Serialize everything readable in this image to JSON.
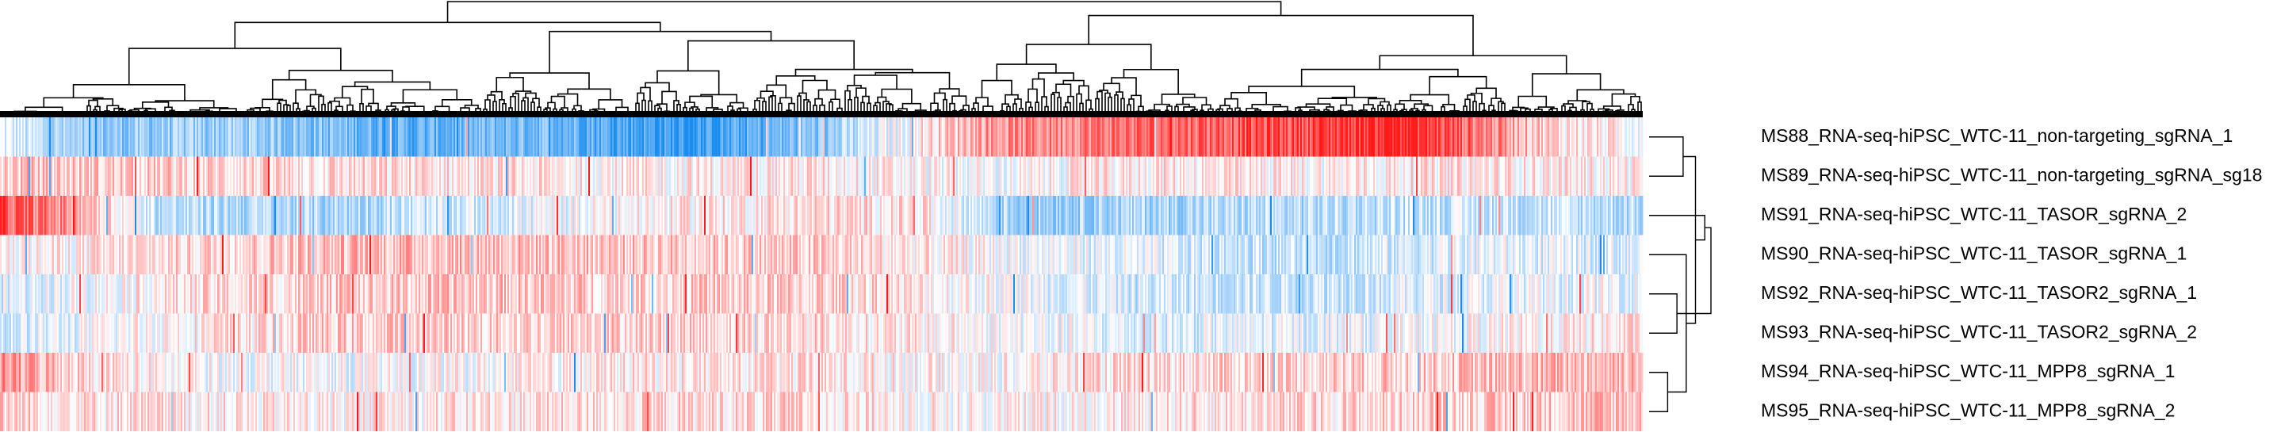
{
  "chart_data": {
    "type": "heatmap",
    "title": "",
    "xlabel": "",
    "ylabel": "",
    "row_dendrogram": "right",
    "column_dendrogram": "top",
    "legend": "none",
    "colors": {
      "low": "#1a8cf0",
      "mid": "#ffffff",
      "high": "#ff1a1a",
      "branch": "#000000"
    },
    "value_range": [
      -1,
      1
    ],
    "rows": [
      "MS88_RNA-seq-hiPSC_WTC-11_non-targeting_sgRNA_1",
      "MS89_RNA-seq-hiPSC_WTC-11_non-targeting_sgRNA_sg18",
      "MS91_RNA-seq-hiPSC_WTC-11_TASOR_sgRNA_2",
      "MS90_RNA-seq-hiPSC_WTC-11_TASOR_sgRNA_1",
      "MS92_RNA-seq-hiPSC_WTC-11_TASOR2_sgRNA_1",
      "MS93_RNA-seq-hiPSC_WTC-11_TASOR2_sgRNA_2",
      "MS94_RNA-seq-hiPSC_WTC-11_MPP8_sgRNA_1",
      "MS95_RNA-seq-hiPSC_WTC-11_MPP8_sgRNA_2"
    ],
    "row_profiles": [
      [
        [
          0,
          -0.1
        ],
        [
          0.05,
          -0.5
        ],
        [
          0.15,
          -0.4
        ],
        [
          0.25,
          -0.7
        ],
        [
          0.33,
          -0.55
        ],
        [
          0.42,
          -0.9
        ],
        [
          0.5,
          -0.5
        ],
        [
          0.56,
          0.1
        ],
        [
          0.6,
          0.45
        ],
        [
          0.7,
          0.65
        ],
        [
          0.8,
          0.8
        ],
        [
          0.85,
          1.0
        ],
        [
          0.9,
          0.6
        ],
        [
          0.95,
          0.15
        ],
        [
          1.0,
          0.0
        ]
      ],
      [
        [
          0,
          0.25
        ],
        [
          0.1,
          0.2
        ],
        [
          0.2,
          0.15
        ],
        [
          0.3,
          0.1
        ],
        [
          0.4,
          0.05
        ],
        [
          0.5,
          0.1
        ],
        [
          0.6,
          -0.05
        ],
        [
          0.7,
          0.1
        ],
        [
          0.8,
          0.05
        ],
        [
          0.9,
          0.1
        ],
        [
          1.0,
          0.05
        ]
      ],
      [
        [
          0,
          0.75
        ],
        [
          0.05,
          0.4
        ],
        [
          0.1,
          -0.3
        ],
        [
          0.2,
          -0.35
        ],
        [
          0.3,
          -0.15
        ],
        [
          0.4,
          0.05
        ],
        [
          0.5,
          0.15
        ],
        [
          0.56,
          0.1
        ],
        [
          0.62,
          -0.4
        ],
        [
          0.7,
          -0.35
        ],
        [
          0.8,
          -0.3
        ],
        [
          0.9,
          -0.2
        ],
        [
          1.0,
          -0.3
        ]
      ],
      [
        [
          0,
          0.0
        ],
        [
          0.1,
          0.15
        ],
        [
          0.2,
          0.3
        ],
        [
          0.3,
          0.3
        ],
        [
          0.4,
          0.25
        ],
        [
          0.5,
          0.2
        ],
        [
          0.6,
          0.0
        ],
        [
          0.7,
          -0.15
        ],
        [
          0.8,
          -0.25
        ],
        [
          0.9,
          -0.1
        ],
        [
          1.0,
          -0.15
        ]
      ],
      [
        [
          0,
          -0.15
        ],
        [
          0.1,
          0.1
        ],
        [
          0.2,
          0.2
        ],
        [
          0.3,
          0.25
        ],
        [
          0.4,
          0.2
        ],
        [
          0.5,
          0.2
        ],
        [
          0.6,
          0.0
        ],
        [
          0.7,
          -0.2
        ],
        [
          0.8,
          -0.2
        ],
        [
          0.9,
          -0.1
        ],
        [
          1.0,
          -0.05
        ]
      ],
      [
        [
          0,
          -0.2
        ],
        [
          0.1,
          0.05
        ],
        [
          0.2,
          0.2
        ],
        [
          0.3,
          0.2
        ],
        [
          0.4,
          0.2
        ],
        [
          0.5,
          0.15
        ],
        [
          0.6,
          0.0
        ],
        [
          0.7,
          -0.15
        ],
        [
          0.8,
          -0.1
        ],
        [
          0.9,
          0.0
        ],
        [
          1.0,
          0.1
        ]
      ],
      [
        [
          0,
          0.45
        ],
        [
          0.05,
          0.2
        ],
        [
          0.1,
          0.0
        ],
        [
          0.2,
          -0.05
        ],
        [
          0.3,
          0.0
        ],
        [
          0.4,
          0.1
        ],
        [
          0.5,
          0.1
        ],
        [
          0.6,
          0.0
        ],
        [
          0.7,
          0.15
        ],
        [
          0.8,
          0.2
        ],
        [
          0.9,
          0.25
        ],
        [
          1.0,
          0.35
        ]
      ],
      [
        [
          0,
          0.2
        ],
        [
          0.1,
          0.1
        ],
        [
          0.2,
          0.05
        ],
        [
          0.3,
          0.1
        ],
        [
          0.4,
          0.15
        ],
        [
          0.5,
          0.15
        ],
        [
          0.6,
          0.0
        ],
        [
          0.7,
          0.1
        ],
        [
          0.8,
          0.15
        ],
        [
          0.9,
          0.2
        ],
        [
          1.0,
          0.3
        ]
      ]
    ],
    "row_dendrogram_links": [
      [
        0,
        1,
        0.55
      ],
      [
        6,
        7,
        0.3
      ],
      [
        4,
        5,
        0.45
      ],
      [
        3,
        9,
        0.6
      ],
      [
        8,
        11,
        0.75
      ],
      [
        2,
        12,
        0.9
      ],
      [
        10,
        13,
        1.0
      ]
    ]
  }
}
